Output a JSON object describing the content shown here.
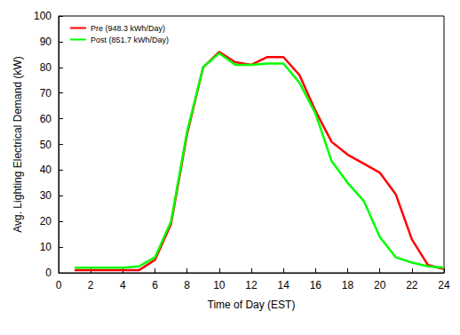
{
  "chart_data": {
    "type": "line",
    "x_label": "Time of Day (EST)",
    "y_label": "Avg. Lighting Electrical Demand (kW)",
    "x": [
      1,
      2,
      3,
      4,
      5,
      6,
      7,
      8,
      9,
      10,
      11,
      12,
      13,
      14,
      15,
      16,
      17,
      18,
      19,
      20,
      21,
      22,
      23,
      24
    ],
    "series": [
      {
        "name": "Pre (948.3 kWh/Day)",
        "color": "#ff0000",
        "values": [
          1,
          1,
          1,
          1,
          1,
          5,
          19,
          54,
          80,
          86,
          82,
          81,
          84,
          84,
          77,
          63,
          51,
          46,
          42.5,
          39,
          30.5,
          13,
          3,
          1.5
        ]
      },
      {
        "name": "Post (851.7 kWh/Day)",
        "color": "#00ff00",
        "values": [
          2,
          2,
          2,
          2,
          2.5,
          6,
          20,
          55,
          80,
          85.5,
          81,
          81,
          81.5,
          81.5,
          74,
          62,
          43.5,
          35,
          28,
          14,
          6,
          4,
          2.5,
          2
        ]
      }
    ],
    "xlim": [
      0,
      24
    ],
    "xticks": [
      0,
      2,
      4,
      6,
      8,
      10,
      12,
      14,
      16,
      18,
      20,
      22,
      24
    ],
    "ylim": [
      0,
      100
    ],
    "yticks": [
      0,
      10,
      20,
      30,
      40,
      50,
      60,
      70,
      80,
      90,
      100
    ],
    "grid": false,
    "legend": "upper left",
    "marker": "none"
  }
}
